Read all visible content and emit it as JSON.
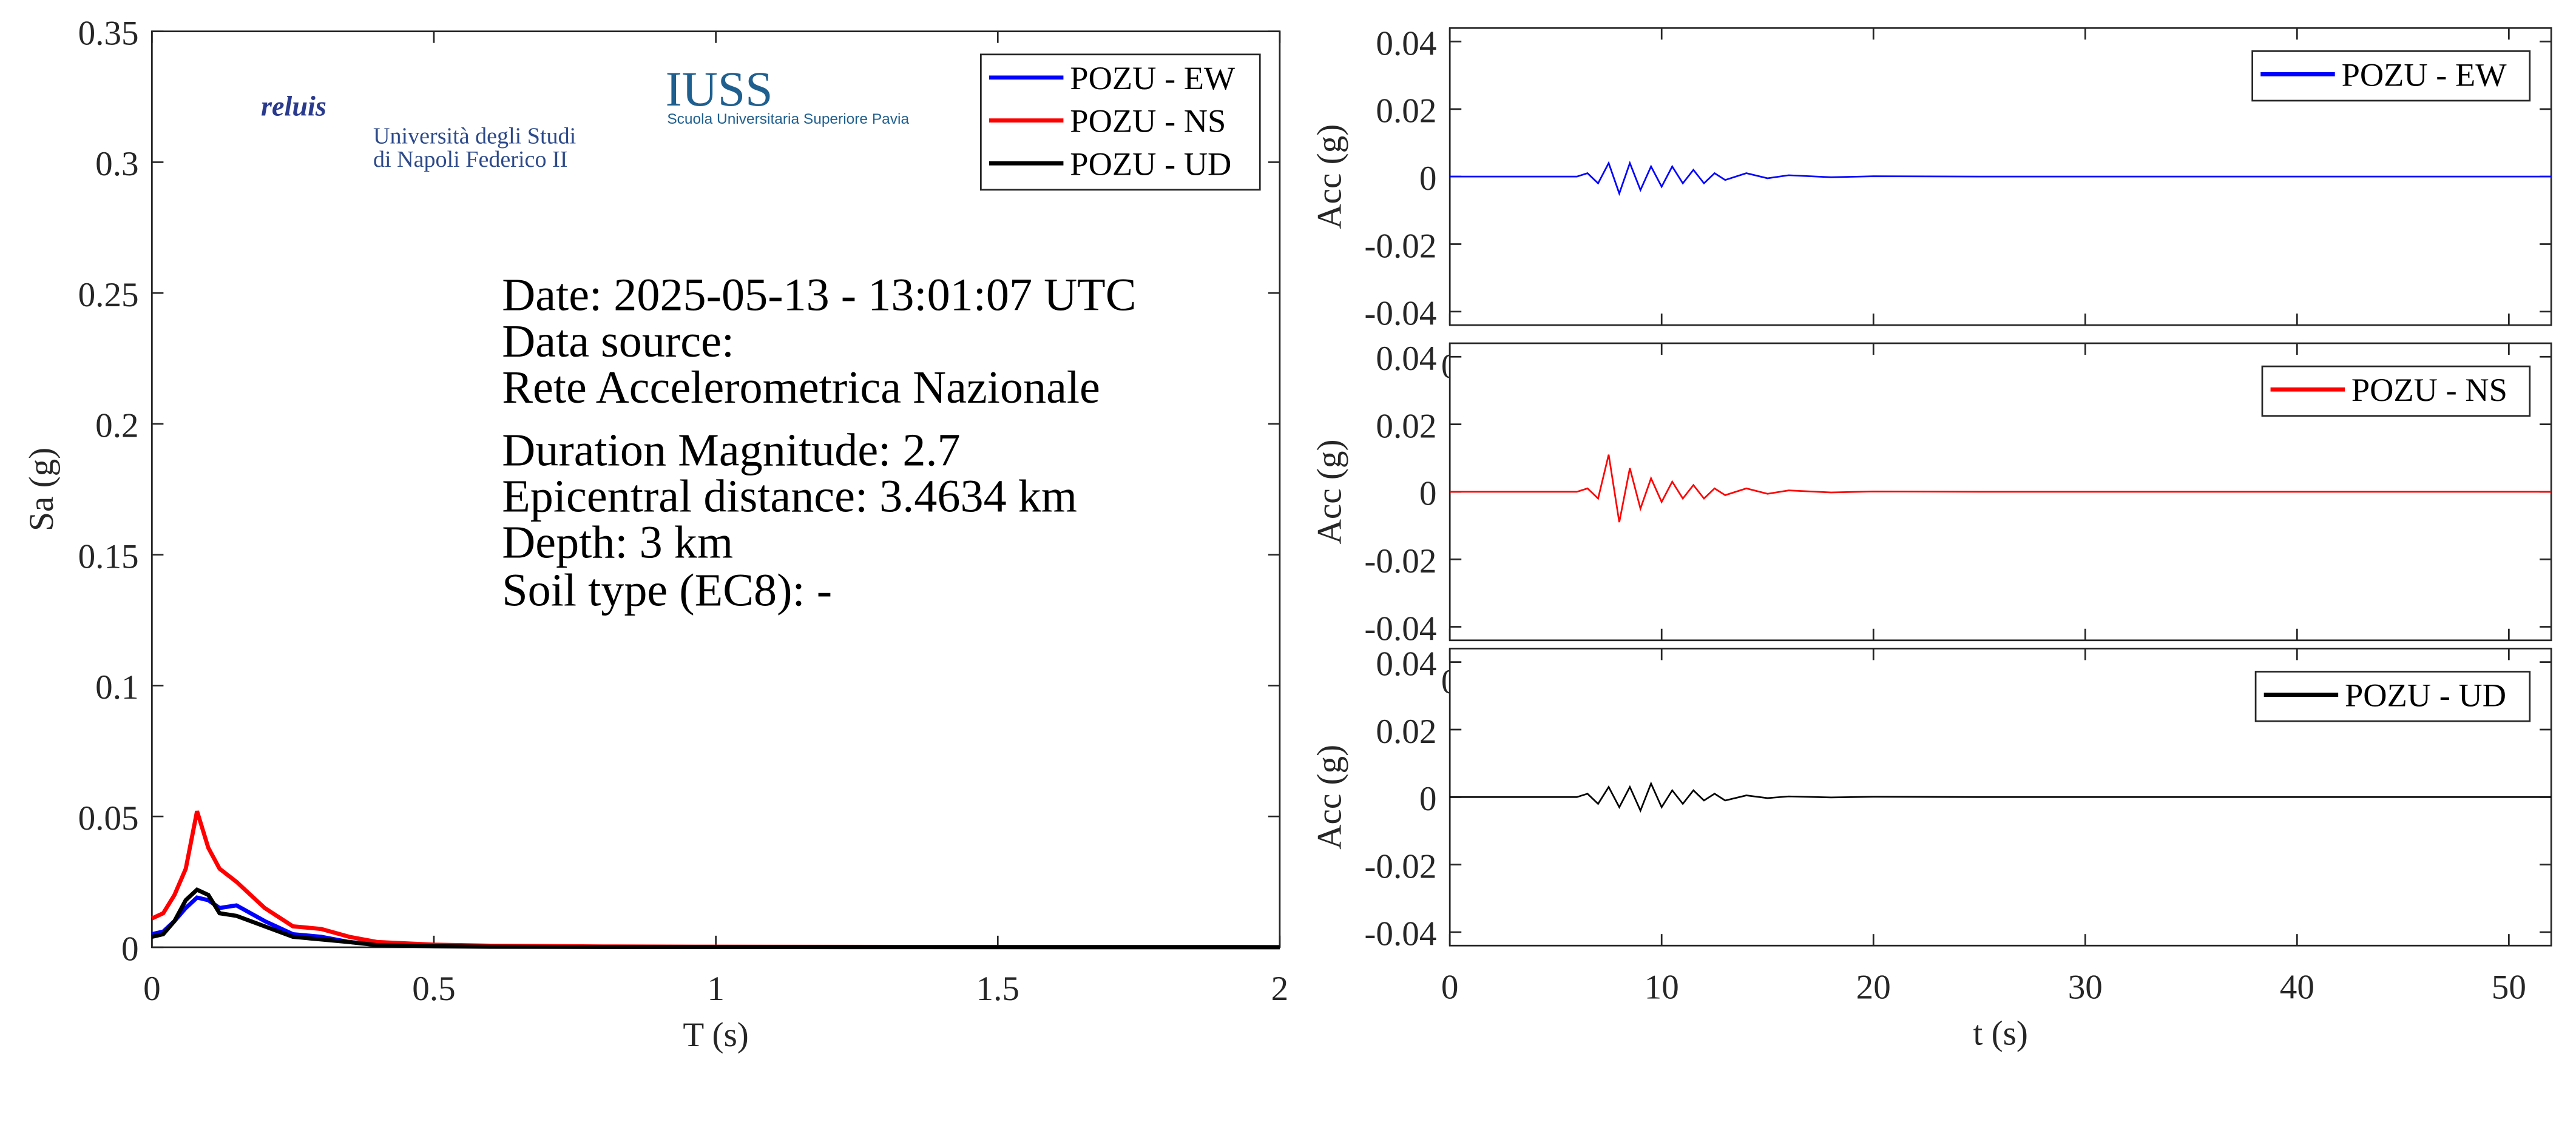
{
  "chart_data": [
    {
      "type": "line",
      "xlabel": "T (s)",
      "ylabel": "Sa (g)",
      "x": [
        0,
        0.02,
        0.04,
        0.06,
        0.08,
        0.1,
        0.12,
        0.15,
        0.2,
        0.25,
        0.3,
        0.35,
        0.4,
        0.5,
        0.6,
        0.8,
        1,
        1.5,
        2
      ],
      "series": [
        {
          "name": "POZU - EW",
          "color": "#0000ff",
          "values": [
            0.005,
            0.006,
            0.01,
            0.015,
            0.019,
            0.018,
            0.015,
            0.016,
            0.01,
            0.005,
            0.004,
            0.002,
            0.001,
            0.0005,
            0.0003,
            0.0002,
            0.0001,
            5e-05,
            3e-05
          ]
        },
        {
          "name": "POZU - NS",
          "color": "#ff0000",
          "values": [
            0.011,
            0.013,
            0.02,
            0.03,
            0.052,
            0.038,
            0.03,
            0.025,
            0.015,
            0.008,
            0.007,
            0.004,
            0.002,
            0.001,
            0.0006,
            0.0003,
            0.0002,
            0.0001,
            5e-05
          ]
        },
        {
          "name": "POZU - UD",
          "color": "#000000",
          "values": [
            0.004,
            0.005,
            0.01,
            0.018,
            0.022,
            0.02,
            0.013,
            0.012,
            0.008,
            0.004,
            0.003,
            0.002,
            0.0008,
            0.0004,
            0.0002,
            0.0001,
            8e-05,
            4e-05,
            2e-05
          ]
        }
      ],
      "xlim": [
        0,
        2
      ],
      "ylim": [
        0,
        0.35
      ],
      "xticks": [
        0,
        0.5,
        1,
        1.5,
        2
      ],
      "yticks": [
        0,
        0.05,
        0.1,
        0.15,
        0.2,
        0.25,
        0.3,
        0.35
      ],
      "legend": "upper right",
      "annotations": [
        "Date: 2025-05-13 - 13:01:07 UTC",
        "Data source:",
        "Rete Accelerometrica Nazionale",
        "Duration Magnitude: 2.7",
        "Epicentral distance: 3.4634 km",
        "Depth: 3 km",
        "Soil type (EC8): -"
      ],
      "logo_texts": [
        "reluis",
        "Università degli Studi",
        "di Napoli Federico II",
        "IUSS",
        "Scuola Universitaria Superiore Pavia"
      ]
    },
    {
      "type": "line",
      "ylabel": "Acc (g)",
      "x": [
        0,
        6,
        6.5,
        7,
        7.5,
        8,
        8.5,
        9,
        9.5,
        10,
        10.5,
        11,
        11.5,
        12,
        12.5,
        13,
        14,
        15,
        16,
        18,
        20,
        25,
        30,
        40,
        52
      ],
      "series": [
        {
          "name": "POZU - EW",
          "color": "#0000ff",
          "values": [
            0,
            0,
            0.001,
            -0.002,
            0.004,
            -0.005,
            0.004,
            -0.004,
            0.003,
            -0.003,
            0.003,
            -0.002,
            0.002,
            -0.002,
            0.001,
            -0.001,
            0.001,
            -0.0005,
            0.0004,
            -0.0002,
            0.0001,
            0,
            0,
            0,
            0
          ]
        }
      ],
      "xlim": [
        0,
        52
      ],
      "ylim": [
        -0.044,
        0.044
      ],
      "xticks": [
        0,
        10,
        20,
        30,
        40,
        50
      ],
      "yticks": [
        -0.04,
        -0.02,
        0,
        0.02,
        0.04
      ],
      "legend": "upper right"
    },
    {
      "type": "line",
      "ylabel": "Acc (g)",
      "x": [
        0,
        6,
        6.5,
        7,
        7.5,
        8,
        8.5,
        9,
        9.5,
        10,
        10.5,
        11,
        11.5,
        12,
        12.5,
        13,
        14,
        15,
        16,
        18,
        20,
        25,
        30,
        40,
        52
      ],
      "series": [
        {
          "name": "POZU - NS",
          "color": "#ff0000",
          "values": [
            0,
            0,
            0.001,
            -0.002,
            0.011,
            -0.009,
            0.007,
            -0.005,
            0.004,
            -0.003,
            0.003,
            -0.002,
            0.002,
            -0.002,
            0.001,
            -0.001,
            0.001,
            -0.0006,
            0.0004,
            -0.0002,
            0.0001,
            0,
            0,
            0,
            0
          ]
        }
      ],
      "xlim": [
        0,
        52
      ],
      "ylim": [
        -0.044,
        0.044
      ],
      "xticks": [
        0,
        10,
        20,
        30,
        40,
        50
      ],
      "yticks": [
        -0.04,
        -0.02,
        0,
        0.02,
        0.04
      ],
      "legend": "upper right"
    },
    {
      "type": "line",
      "xlabel": "t (s)",
      "ylabel": "Acc (g)",
      "x": [
        0,
        6,
        6.5,
        7,
        7.5,
        8,
        8.5,
        9,
        9.5,
        10,
        10.5,
        11,
        11.5,
        12,
        12.5,
        13,
        14,
        15,
        16,
        18,
        20,
        25,
        30,
        40,
        52
      ],
      "series": [
        {
          "name": "POZU - UD",
          "color": "#000000",
          "values": [
            0,
            0,
            0.001,
            -0.002,
            0.003,
            -0.003,
            0.003,
            -0.004,
            0.004,
            -0.003,
            0.002,
            -0.002,
            0.002,
            -0.001,
            0.001,
            -0.001,
            0.0005,
            -0.0003,
            0.0002,
            -0.0001,
            0.0001,
            0,
            0,
            0,
            0
          ]
        }
      ],
      "xlim": [
        0,
        52
      ],
      "ylim": [
        -0.044,
        0.044
      ],
      "xticks": [
        0,
        10,
        20,
        30,
        40,
        50
      ],
      "yticks": [
        -0.04,
        -0.02,
        0,
        0.02,
        0.04
      ],
      "legend": "upper right"
    }
  ]
}
